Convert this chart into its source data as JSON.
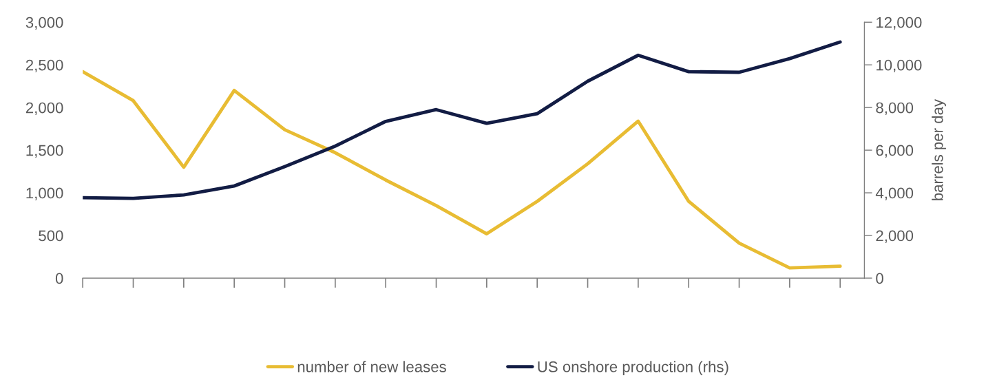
{
  "chart_data": {
    "type": "line",
    "categories": [
      null,
      null,
      null,
      null,
      null,
      null,
      null,
      null,
      null,
      null,
      null,
      null,
      null,
      null,
      null,
      null
    ],
    "series": [
      {
        "name": "number of new leases",
        "color": "#e8bc33",
        "values": [
          2420,
          2080,
          1300,
          2200,
          1740,
          1470,
          1150,
          850,
          520,
          900,
          1340,
          1840,
          900,
          410,
          120,
          140
        ]
      },
      {
        "name": "US onshore production (rhs)",
        "color": "#121c44",
        "axis": "y2",
        "values": [
          3770,
          3740,
          3900,
          4320,
          5230,
          6190,
          7350,
          7900,
          7260,
          7710,
          9230,
          10450,
          9680,
          9650,
          10290,
          11070
        ]
      }
    ],
    "ylim": [
      0,
      3000
    ],
    "yticks": [
      0,
      {
        "value": 500,
        "label": "500"
      },
      {
        "value": 1000,
        "label": "1,000"
      },
      {
        "value": 1500,
        "label": "1,500"
      },
      {
        "value": 2000,
        "label": "2,000"
      },
      {
        "value": 2500,
        "label": "2,500"
      },
      {
        "value": 3000,
        "label": "3,000"
      }
    ],
    "y2lim": [
      0,
      12000
    ],
    "y2ticks": [
      0,
      {
        "value": 2000,
        "label": "2,000"
      },
      {
        "value": 4000,
        "label": "4,000"
      },
      {
        "value": 6000,
        "label": "6,000"
      },
      {
        "value": 8000,
        "label": "8,000"
      },
      {
        "value": 10000,
        "label": "10,000"
      },
      {
        "value": 12000,
        "label": "12,000"
      }
    ],
    "y2label": "barrels per day",
    "legend": "bottom",
    "grid": false,
    "marker": "none",
    "line_style": "solid"
  }
}
